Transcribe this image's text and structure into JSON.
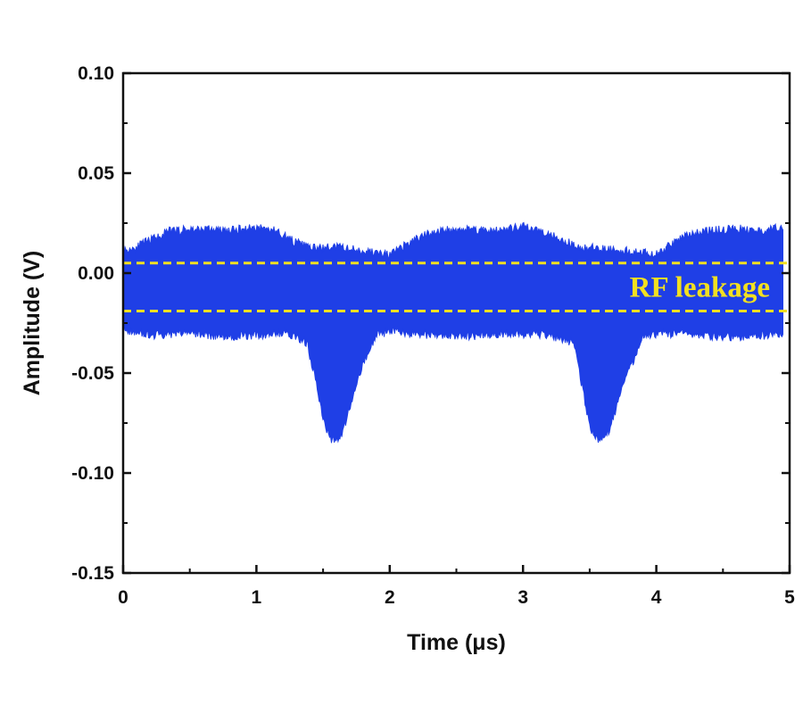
{
  "chart_data": {
    "type": "line",
    "title": "",
    "xlabel": "Time (μs)",
    "ylabel": "Amplitude (V)",
    "xlim": [
      0,
      5
    ],
    "ylim": [
      -0.15,
      0.1
    ],
    "x_ticks": [
      "0",
      "1",
      "2",
      "3",
      "4",
      "5"
    ],
    "y_ticks": [
      "0.10",
      "0.05",
      "0.00",
      "-0.05",
      "-0.10",
      "-0.15"
    ],
    "grid": false,
    "signal_color": "#1f3fe6",
    "series": [
      {
        "role": "upper envelope",
        "x": [
          0,
          0.1,
          0.35,
          0.6,
          0.8,
          1.0,
          1.15,
          1.3,
          1.45,
          1.6,
          1.8,
          2.0,
          2.2,
          2.35,
          2.6,
          2.8,
          3.0,
          3.2,
          3.4,
          3.6,
          3.8,
          4.0,
          4.2,
          4.35,
          4.6,
          4.8,
          4.95
        ],
        "y": [
          0.012,
          0.014,
          0.022,
          0.023,
          0.022,
          0.024,
          0.022,
          0.016,
          0.013,
          0.014,
          0.012,
          0.01,
          0.018,
          0.022,
          0.023,
          0.022,
          0.024,
          0.021,
          0.014,
          0.013,
          0.012,
          0.01,
          0.019,
          0.022,
          0.023,
          0.022,
          0.024
        ]
      },
      {
        "role": "lower envelope",
        "x": [
          0,
          0.2,
          0.5,
          0.8,
          1.0,
          1.2,
          1.38,
          1.45,
          1.5,
          1.55,
          1.6,
          1.65,
          1.7,
          1.75,
          1.8,
          1.9,
          2.0,
          2.3,
          2.6,
          2.9,
          3.2,
          3.38,
          3.45,
          3.5,
          3.55,
          3.6,
          3.65,
          3.7,
          3.75,
          3.82,
          3.9,
          4.2,
          4.5,
          4.95
        ],
        "y": [
          -0.028,
          -0.03,
          -0.029,
          -0.031,
          -0.03,
          -0.029,
          -0.034,
          -0.055,
          -0.072,
          -0.082,
          -0.083,
          -0.078,
          -0.066,
          -0.056,
          -0.044,
          -0.03,
          -0.028,
          -0.03,
          -0.031,
          -0.029,
          -0.03,
          -0.034,
          -0.058,
          -0.076,
          -0.082,
          -0.083,
          -0.077,
          -0.066,
          -0.055,
          -0.044,
          -0.03,
          -0.029,
          -0.031,
          -0.03
        ]
      }
    ],
    "annotations": [
      {
        "text": "RF leakage",
        "color": "#f2e020"
      }
    ],
    "reference_lines": [
      {
        "y": 0.005,
        "style": "dashed",
        "color": "#f2e020"
      },
      {
        "y": -0.019,
        "style": "dashed",
        "color": "#f2e020"
      }
    ]
  }
}
